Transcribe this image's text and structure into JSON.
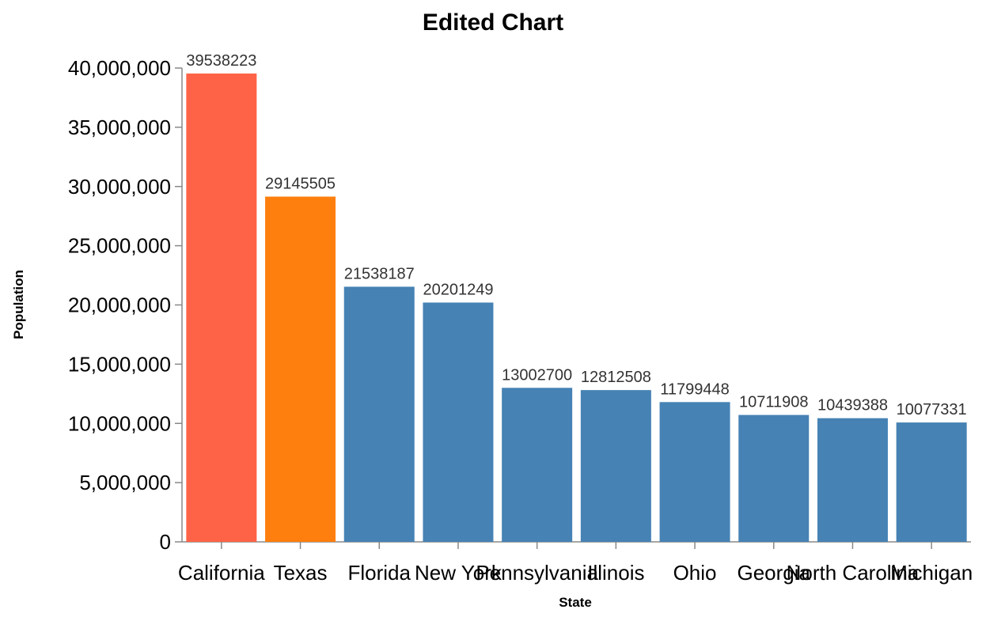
{
  "chart_data": {
    "type": "bar",
    "title": "Edited Chart",
    "xlabel": "State",
    "ylabel": "Population",
    "categories": [
      "California",
      "Texas",
      "Florida",
      "New York",
      "Pennsylvania",
      "Illinois",
      "Ohio",
      "Georgia",
      "North Carolina",
      "Michigan"
    ],
    "values": [
      39538223,
      29145505,
      21538187,
      20201249,
      13002700,
      12812508,
      11799448,
      10711908,
      10439388,
      10077331
    ],
    "colors": [
      "#ff6347",
      "#ff7f0e",
      "#4682b4",
      "#4682b4",
      "#4682b4",
      "#4682b4",
      "#4682b4",
      "#4682b4",
      "#4682b4",
      "#4682b4"
    ],
    "ylim": [
      0,
      40000000
    ],
    "yticks": [
      0,
      5000000,
      10000000,
      15000000,
      20000000,
      25000000,
      30000000,
      35000000,
      40000000
    ],
    "ytick_labels": [
      "0",
      "5,000,000",
      "10,000,000",
      "15,000,000",
      "20,000,000",
      "25,000,000",
      "30,000,000",
      "35,000,000",
      "40,000,000"
    ],
    "grid": false,
    "legend": "none"
  }
}
